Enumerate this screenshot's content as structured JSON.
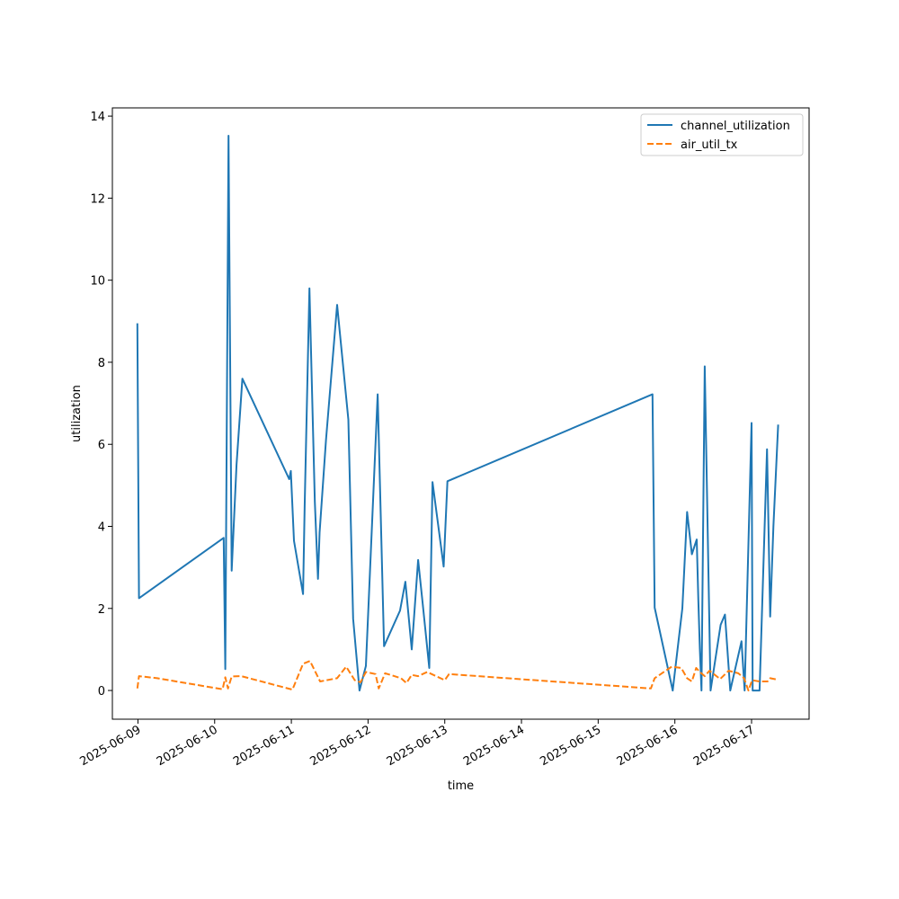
{
  "chart_data": {
    "type": "line",
    "xlabel": "time",
    "ylabel": "utilization",
    "x_type": "date",
    "xlim": [
      "2025-06-08T16:00",
      "2025-06-17T18:00"
    ],
    "ylim": [
      -0.7,
      14.2
    ],
    "x_ticks": [
      "2025-06-09",
      "2025-06-10",
      "2025-06-11",
      "2025-06-12",
      "2025-06-13",
      "2025-06-14",
      "2025-06-15",
      "2025-06-16",
      "2025-06-17"
    ],
    "y_ticks": [
      0,
      2,
      4,
      6,
      8,
      10,
      12,
      14
    ],
    "grid": false,
    "legend": "top-right",
    "series": [
      {
        "name": "channel_utilization",
        "color": "#1f77b4",
        "style": "solid",
        "points": [
          [
            "2025-06-08T23:50",
            8.95
          ],
          [
            "2025-06-09T00:20",
            2.25
          ],
          [
            "2025-06-10T02:50",
            3.72
          ],
          [
            "2025-06-10T03:20",
            0.52
          ],
          [
            "2025-06-10T04:20",
            13.52
          ],
          [
            "2025-06-10T05:20",
            2.92
          ],
          [
            "2025-06-10T06:50",
            5.5
          ],
          [
            "2025-06-10T08:40",
            7.6
          ],
          [
            "2025-06-10T23:20",
            5.15
          ],
          [
            "2025-06-10T23:50",
            5.35
          ],
          [
            "2025-06-11T00:50",
            3.65
          ],
          [
            "2025-06-11T03:40",
            2.35
          ],
          [
            "2025-06-11T04:10",
            4.5
          ],
          [
            "2025-06-11T05:40",
            9.8
          ],
          [
            "2025-06-11T07:20",
            4.6
          ],
          [
            "2025-06-11T08:20",
            2.72
          ],
          [
            "2025-06-11T08:50",
            3.85
          ],
          [
            "2025-06-11T10:50",
            6.1
          ],
          [
            "2025-06-11T14:20",
            9.4
          ],
          [
            "2025-06-11T17:50",
            6.6
          ],
          [
            "2025-06-11T19:20",
            1.75
          ],
          [
            "2025-06-11T21:20",
            0.0
          ],
          [
            "2025-06-11T23:20",
            0.6
          ],
          [
            "2025-06-12T03:00",
            7.22
          ],
          [
            "2025-06-12T05:00",
            1.08
          ],
          [
            "2025-06-12T10:00",
            1.95
          ],
          [
            "2025-06-12T11:40",
            2.65
          ],
          [
            "2025-06-12T13:40",
            1.0
          ],
          [
            "2025-06-12T15:40",
            3.18
          ],
          [
            "2025-06-12T17:00",
            2.2
          ],
          [
            "2025-06-12T19:10",
            0.55
          ],
          [
            "2025-06-12T20:10",
            5.08
          ],
          [
            "2025-06-12T23:40",
            3.02
          ],
          [
            "2025-06-13T00:50",
            5.1
          ],
          [
            "2025-06-15T17:00",
            7.22
          ],
          [
            "2025-06-15T17:40",
            2.02
          ],
          [
            "2025-06-15T23:20",
            0.0
          ],
          [
            "2025-06-16T02:20",
            2.0
          ],
          [
            "2025-06-16T03:50",
            4.35
          ],
          [
            "2025-06-16T05:20",
            3.32
          ],
          [
            "2025-06-16T06:50",
            3.68
          ],
          [
            "2025-06-16T07:20",
            2.2
          ],
          [
            "2025-06-16T07:50",
            1.0
          ],
          [
            "2025-06-16T08:20",
            0.0
          ],
          [
            "2025-06-16T09:20",
            7.9
          ],
          [
            "2025-06-16T11:10",
            0.0
          ],
          [
            "2025-06-16T14:20",
            1.6
          ],
          [
            "2025-06-16T15:40",
            1.85
          ],
          [
            "2025-06-16T17:20",
            0.0
          ],
          [
            "2025-06-16T20:50",
            1.2
          ],
          [
            "2025-06-16T21:50",
            0.0
          ],
          [
            "2025-06-16T23:30",
            5.0
          ],
          [
            "2025-06-17T00:00",
            6.52
          ],
          [
            "2025-06-17T00:20",
            0.0
          ],
          [
            "2025-06-17T02:30",
            0.0
          ],
          [
            "2025-06-17T04:50",
            5.88
          ],
          [
            "2025-06-17T05:50",
            1.8
          ],
          [
            "2025-06-17T06:50",
            4.0
          ],
          [
            "2025-06-17T08:20",
            6.48
          ]
        ]
      },
      {
        "name": "air_util_tx",
        "color": "#ff7f0e",
        "style": "dashed",
        "points": [
          [
            "2025-06-08T23:50",
            0.05
          ],
          [
            "2025-06-09T00:20",
            0.35
          ],
          [
            "2025-06-09T06:00",
            0.3
          ],
          [
            "2025-06-10T02:30",
            0.03
          ],
          [
            "2025-06-10T03:20",
            0.32
          ],
          [
            "2025-06-10T04:10",
            0.05
          ],
          [
            "2025-06-10T05:20",
            0.34
          ],
          [
            "2025-06-10T08:20",
            0.35
          ],
          [
            "2025-06-11T00:20",
            0.02
          ],
          [
            "2025-06-11T03:40",
            0.65
          ],
          [
            "2025-06-11T05:50",
            0.72
          ],
          [
            "2025-06-11T09:00",
            0.22
          ],
          [
            "2025-06-11T14:20",
            0.3
          ],
          [
            "2025-06-11T17:10",
            0.58
          ],
          [
            "2025-06-11T19:50",
            0.25
          ],
          [
            "2025-06-11T21:40",
            0.2
          ],
          [
            "2025-06-11T23:20",
            0.45
          ],
          [
            "2025-06-12T02:20",
            0.4
          ],
          [
            "2025-06-12T03:20",
            0.05
          ],
          [
            "2025-06-12T05:20",
            0.42
          ],
          [
            "2025-06-12T10:20",
            0.3
          ],
          [
            "2025-06-12T12:00",
            0.18
          ],
          [
            "2025-06-12T13:40",
            0.38
          ],
          [
            "2025-06-12T15:40",
            0.35
          ],
          [
            "2025-06-12T18:30",
            0.45
          ],
          [
            "2025-06-13T00:00",
            0.25
          ],
          [
            "2025-06-13T01:20",
            0.4
          ],
          [
            "2025-06-15T16:30",
            0.05
          ],
          [
            "2025-06-15T17:40",
            0.3
          ],
          [
            "2025-06-15T23:00",
            0.58
          ],
          [
            "2025-06-16T02:00",
            0.55
          ],
          [
            "2025-06-16T03:50",
            0.3
          ],
          [
            "2025-06-16T05:20",
            0.22
          ],
          [
            "2025-06-16T06:40",
            0.55
          ],
          [
            "2025-06-16T07:50",
            0.45
          ],
          [
            "2025-06-16T09:20",
            0.35
          ],
          [
            "2025-06-16T10:50",
            0.48
          ],
          [
            "2025-06-16T14:10",
            0.28
          ],
          [
            "2025-06-16T16:50",
            0.48
          ],
          [
            "2025-06-16T19:50",
            0.42
          ],
          [
            "2025-06-16T21:40",
            0.3
          ],
          [
            "2025-06-16T23:00",
            0.0
          ],
          [
            "2025-06-17T00:10",
            0.25
          ],
          [
            "2025-06-17T02:30",
            0.22
          ],
          [
            "2025-06-17T05:00",
            0.22
          ],
          [
            "2025-06-17T05:50",
            0.3
          ],
          [
            "2025-06-17T08:20",
            0.26
          ]
        ]
      }
    ]
  }
}
